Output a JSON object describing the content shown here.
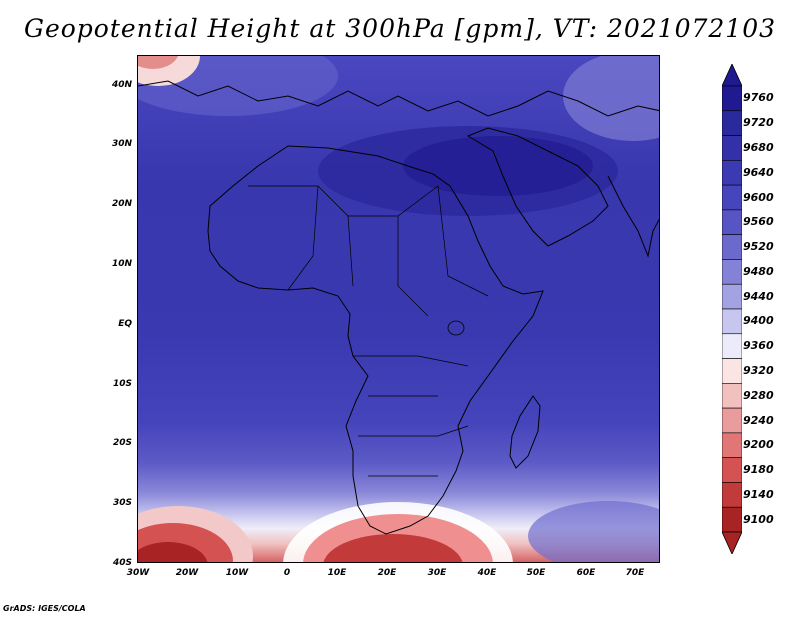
{
  "title": "Geopotential Height at 300hPa [gpm], VT: 2021072103",
  "credit": "GrADS: IGES/COLA",
  "lat_labels": [
    "40N",
    "30N",
    "20N",
    "10N",
    "EQ",
    "10S",
    "20S",
    "30S",
    "40S"
  ],
  "lon_labels": [
    "30W",
    "20W",
    "10W",
    "0",
    "10E",
    "20E",
    "30E",
    "40E",
    "50E",
    "60E",
    "70E"
  ],
  "colorbar": {
    "levels": [
      "9760",
      "9720",
      "9680",
      "9640",
      "9600",
      "9560",
      "9520",
      "9480",
      "9440",
      "9400",
      "9360",
      "9320",
      "9280",
      "9240",
      "9200",
      "9180",
      "9140",
      "9100"
    ],
    "colors": [
      "#1f1a8f",
      "#2b2a9d",
      "#3431a8",
      "#3c3ab2",
      "#4745bc",
      "#5754c4",
      "#6b69cc",
      "#8482d6",
      "#a3a2e2",
      "#c6c6ee",
      "#ecebfa",
      "#fbe4e4",
      "#f3c0c0",
      "#ea9b9b",
      "#e07676",
      "#d45252",
      "#c33a3a",
      "#a82323"
    ],
    "top_arrow_color": "#1f1a8f",
    "bottom_arrow_color": "#a82323"
  }
}
